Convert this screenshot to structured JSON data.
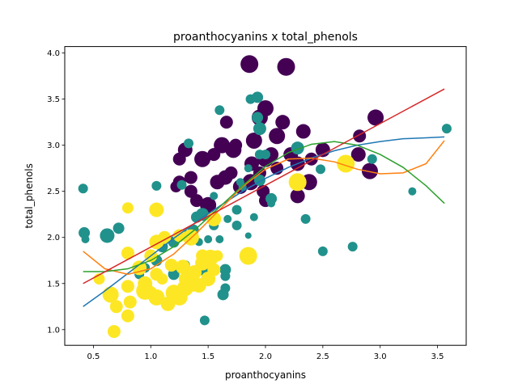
{
  "chart_data": {
    "type": "scatter",
    "title": "proanthocyanins x total_phenols",
    "xlabel": "proanthocyanins",
    "ylabel": "total_phenols",
    "xlim": [
      0.25,
      3.75
    ],
    "ylim": [
      0.83,
      4.07
    ],
    "xticks": [
      0.5,
      1.0,
      1.5,
      2.0,
      2.5,
      3.0,
      3.5
    ],
    "xtick_labels": [
      "0.5",
      "1.0",
      "1.5",
      "2.0",
      "2.5",
      "3.0",
      "3.5"
    ],
    "yticks": [
      1.0,
      1.5,
      2.0,
      2.5,
      3.0,
      3.5,
      4.0
    ],
    "ytick_labels": [
      "1.0",
      "1.5",
      "2.0",
      "2.5",
      "3.0",
      "3.5",
      "4.0"
    ],
    "grid": false,
    "colors": {
      "class_0": "#440154",
      "class_1": "#21918c",
      "class_2": "#fde725",
      "fit_line_1": "#1f77b4",
      "fit_line_2": "#ff7f0e",
      "fit_line_3": "#2ca02c",
      "fit_line_4": "#d62728"
    },
    "series": [
      {
        "color": "#440154",
        "points": [
          [
            1.86,
            3.88,
            11
          ],
          [
            2.18,
            3.85,
            11
          ],
          [
            2.0,
            3.4,
            10
          ],
          [
            1.95,
            3.3,
            10
          ],
          [
            2.96,
            3.3,
            10
          ],
          [
            1.62,
            3.0,
            10
          ],
          [
            1.72,
            2.95,
            10
          ],
          [
            1.9,
            3.05,
            10
          ],
          [
            2.1,
            3.1,
            10
          ],
          [
            2.33,
            3.15,
            9
          ],
          [
            1.3,
            2.95,
            9
          ],
          [
            1.45,
            2.85,
            10
          ],
          [
            1.25,
            2.85,
            8
          ],
          [
            2.0,
            2.85,
            10
          ],
          [
            2.28,
            2.8,
            9
          ],
          [
            2.38,
            2.6,
            10
          ],
          [
            1.87,
            2.6,
            10
          ],
          [
            1.65,
            2.65,
            9
          ],
          [
            1.58,
            2.6,
            9
          ],
          [
            1.78,
            2.55,
            9
          ],
          [
            1.35,
            2.5,
            8
          ],
          [
            1.25,
            2.6,
            8
          ],
          [
            1.4,
            2.4,
            8
          ],
          [
            1.5,
            2.35,
            10
          ],
          [
            1.98,
            2.5,
            8
          ],
          [
            2.28,
            2.45,
            9
          ],
          [
            2.91,
            2.72,
            10
          ],
          [
            2.81,
            2.9,
            9
          ],
          [
            2.5,
            2.95,
            9
          ],
          [
            2.05,
            2.9,
            9
          ],
          [
            1.88,
            2.8,
            9
          ],
          [
            2.15,
            3.25,
            9
          ],
          [
            1.66,
            3.25,
            8
          ],
          [
            2.82,
            3.1,
            8
          ],
          [
            1.7,
            2.7,
            8
          ],
          [
            1.55,
            2.9,
            8
          ],
          [
            1.95,
            2.7,
            8
          ],
          [
            2.1,
            2.75,
            8
          ],
          [
            1.35,
            2.65,
            8
          ],
          [
            1.22,
            2.55,
            7
          ],
          [
            2.22,
            2.9,
            9
          ],
          [
            2.0,
            2.4,
            8
          ],
          [
            2.4,
            2.85,
            8
          ],
          [
            1.74,
            3.0,
            8
          ]
        ]
      },
      {
        "color": "#21918c",
        "points": [
          [
            0.41,
            2.53,
            6
          ],
          [
            0.42,
            2.05,
            7
          ],
          [
            0.62,
            2.02,
            9
          ],
          [
            0.72,
            2.1,
            7
          ],
          [
            0.43,
            1.98,
            5
          ],
          [
            1.05,
            2.56,
            6
          ],
          [
            1.6,
            3.38,
            6
          ],
          [
            1.87,
            3.5,
            6
          ],
          [
            1.93,
            3.52,
            7
          ],
          [
            1.93,
            3.3,
            7
          ],
          [
            1.95,
            3.18,
            8
          ],
          [
            1.33,
            3.02,
            6
          ],
          [
            2.28,
            2.97,
            8
          ],
          [
            2.48,
            2.74,
            6
          ],
          [
            2.93,
            2.85,
            6
          ],
          [
            3.58,
            3.18,
            6
          ],
          [
            3.28,
            2.5,
            5
          ],
          [
            2.35,
            2.2,
            6
          ],
          [
            2.5,
            1.85,
            6
          ],
          [
            2.76,
            1.9,
            6
          ],
          [
            2.05,
            2.42,
            7
          ],
          [
            2.05,
            2.37,
            5
          ],
          [
            1.9,
            2.22,
            5
          ],
          [
            1.75,
            2.3,
            6
          ],
          [
            1.67,
            2.2,
            5
          ],
          [
            1.75,
            2.13,
            6
          ],
          [
            1.55,
            2.13,
            6
          ],
          [
            1.4,
            2.22,
            7
          ],
          [
            1.45,
            2.25,
            8
          ],
          [
            1.37,
            2.08,
            7
          ],
          [
            1.3,
            2.03,
            6
          ],
          [
            1.42,
            1.95,
            5
          ],
          [
            1.5,
            1.98,
            5
          ],
          [
            1.6,
            1.98,
            5
          ],
          [
            1.85,
            2.02,
            4
          ],
          [
            1.2,
            1.95,
            7
          ],
          [
            1.1,
            1.9,
            7
          ],
          [
            1.05,
            1.75,
            7
          ],
          [
            0.95,
            1.67,
            6
          ],
          [
            0.9,
            1.6,
            6
          ],
          [
            1.2,
            1.6,
            7
          ],
          [
            1.3,
            1.7,
            6
          ],
          [
            1.45,
            1.65,
            7
          ],
          [
            1.65,
            1.65,
            7
          ],
          [
            1.65,
            1.58,
            6
          ],
          [
            1.65,
            1.45,
            6
          ],
          [
            1.63,
            1.38,
            7
          ],
          [
            1.47,
            1.1,
            6
          ],
          [
            1.27,
            2.57,
            6
          ],
          [
            1.55,
            2.45,
            5
          ],
          [
            1.85,
            2.75,
            5
          ],
          [
            1.8,
            2.55,
            5
          ],
          [
            1.95,
            2.62,
            7
          ],
          [
            2.0,
            2.9,
            6
          ],
          [
            1.78,
            2.6,
            5
          ],
          [
            1.95,
            2.9,
            6
          ]
        ]
      },
      {
        "color": "#fde725",
        "points": [
          [
            0.68,
            0.98,
            8
          ],
          [
            0.8,
            1.15,
            8
          ],
          [
            0.82,
            1.3,
            8
          ],
          [
            0.7,
            1.25,
            8
          ],
          [
            0.8,
            1.47,
            8
          ],
          [
            0.65,
            1.38,
            10
          ],
          [
            0.95,
            1.42,
            11
          ],
          [
            1.05,
            1.35,
            10
          ],
          [
            1.15,
            1.28,
            9
          ],
          [
            1.2,
            1.4,
            10
          ],
          [
            1.25,
            1.35,
            10
          ],
          [
            1.3,
            1.45,
            10
          ],
          [
            1.37,
            1.5,
            10
          ],
          [
            1.42,
            1.48,
            9
          ],
          [
            1.5,
            1.55,
            9
          ],
          [
            1.55,
            1.65,
            8
          ],
          [
            1.45,
            1.72,
            9
          ],
          [
            1.38,
            1.62,
            9
          ],
          [
            1.28,
            1.68,
            9
          ],
          [
            1.18,
            1.7,
            8
          ],
          [
            1.05,
            1.6,
            8
          ],
          [
            0.95,
            1.5,
            9
          ],
          [
            0.9,
            1.67,
            9
          ],
          [
            1.0,
            1.8,
            8
          ],
          [
            1.05,
            1.95,
            9
          ],
          [
            1.12,
            2.0,
            8
          ],
          [
            1.25,
            2.02,
            8
          ],
          [
            1.35,
            2.0,
            10
          ],
          [
            1.52,
            1.78,
            10
          ],
          [
            1.45,
            1.8,
            8
          ],
          [
            1.55,
            2.2,
            9
          ],
          [
            1.05,
            2.3,
            9
          ],
          [
            0.8,
            2.32,
            7
          ],
          [
            0.8,
            1.83,
            8
          ],
          [
            1.85,
            1.8,
            11
          ],
          [
            2.28,
            2.6,
            11
          ],
          [
            2.7,
            2.8,
            11
          ],
          [
            0.55,
            1.55,
            7
          ],
          [
            1.58,
            1.8,
            7
          ],
          [
            1.0,
            1.4,
            8
          ],
          [
            1.1,
            1.55,
            7
          ],
          [
            1.3,
            1.55,
            8
          ]
        ]
      }
    ],
    "fit_lines": [
      {
        "color": "#1f77b4",
        "x": [
          0.41,
          0.6,
          0.8,
          1.0,
          1.2,
          1.4,
          1.6,
          1.8,
          2.0,
          2.2,
          2.4,
          2.6,
          2.8,
          3.0,
          3.2,
          3.4,
          3.56
        ],
        "y": [
          1.25,
          1.42,
          1.61,
          1.8,
          1.99,
          2.17,
          2.34,
          2.5,
          2.64,
          2.76,
          2.86,
          2.94,
          3.0,
          3.04,
          3.07,
          3.08,
          3.09
        ]
      },
      {
        "color": "#ff7f0e",
        "x": [
          0.41,
          0.6,
          0.8,
          1.0,
          1.2,
          1.4,
          1.6,
          1.8,
          2.0,
          2.2,
          2.4,
          2.6,
          2.8,
          3.0,
          3.2,
          3.4,
          3.56
        ],
        "y": [
          1.85,
          1.66,
          1.6,
          1.66,
          1.82,
          2.05,
          2.3,
          2.55,
          2.74,
          2.85,
          2.86,
          2.82,
          2.74,
          2.69,
          2.7,
          2.8,
          3.05
        ]
      },
      {
        "color": "#2ca02c",
        "x": [
          0.41,
          0.6,
          0.8,
          1.0,
          1.2,
          1.4,
          1.6,
          1.8,
          2.0,
          2.2,
          2.4,
          2.6,
          2.8,
          3.0,
          3.2,
          3.4,
          3.56
        ],
        "y": [
          1.63,
          1.63,
          1.66,
          1.75,
          1.9,
          2.1,
          2.33,
          2.56,
          2.77,
          2.92,
          3.01,
          3.04,
          3.0,
          2.9,
          2.76,
          2.56,
          2.37
        ]
      },
      {
        "color": "#d62728",
        "x": [
          0.41,
          3.56
        ],
        "y": [
          1.5,
          3.61
        ]
      }
    ]
  }
}
